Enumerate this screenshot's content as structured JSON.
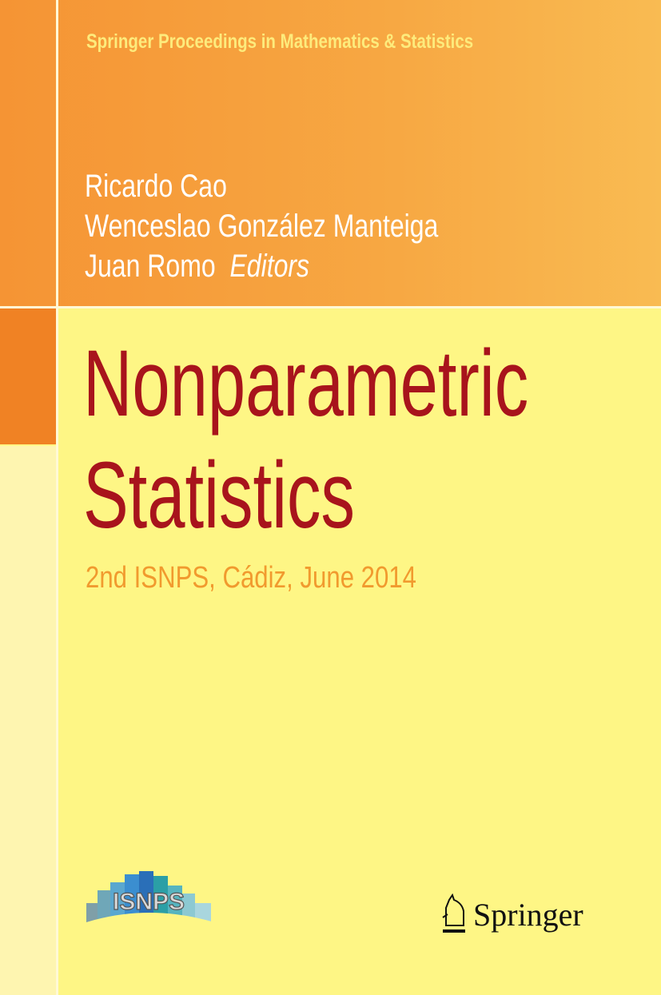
{
  "series": "Springer Proceedings in Mathematics & Statistics",
  "authors": [
    "Ricardo Cao",
    "Wenceslao González Manteiga",
    "Juan Romo"
  ],
  "editors_label": "Editors",
  "title_lines": [
    "Nonparametric",
    "Statistics"
  ],
  "subtitle": "2nd ISNPS, Cádiz, June 2014",
  "logos": {
    "conference": "ISNPS",
    "publisher": "Springer",
    "publisher_icon": "knight-horse-icon"
  },
  "colors": {
    "orange": "#f59434",
    "yellow": "#fef685",
    "title": "#a8141c",
    "subtitle": "#f19a2e"
  }
}
